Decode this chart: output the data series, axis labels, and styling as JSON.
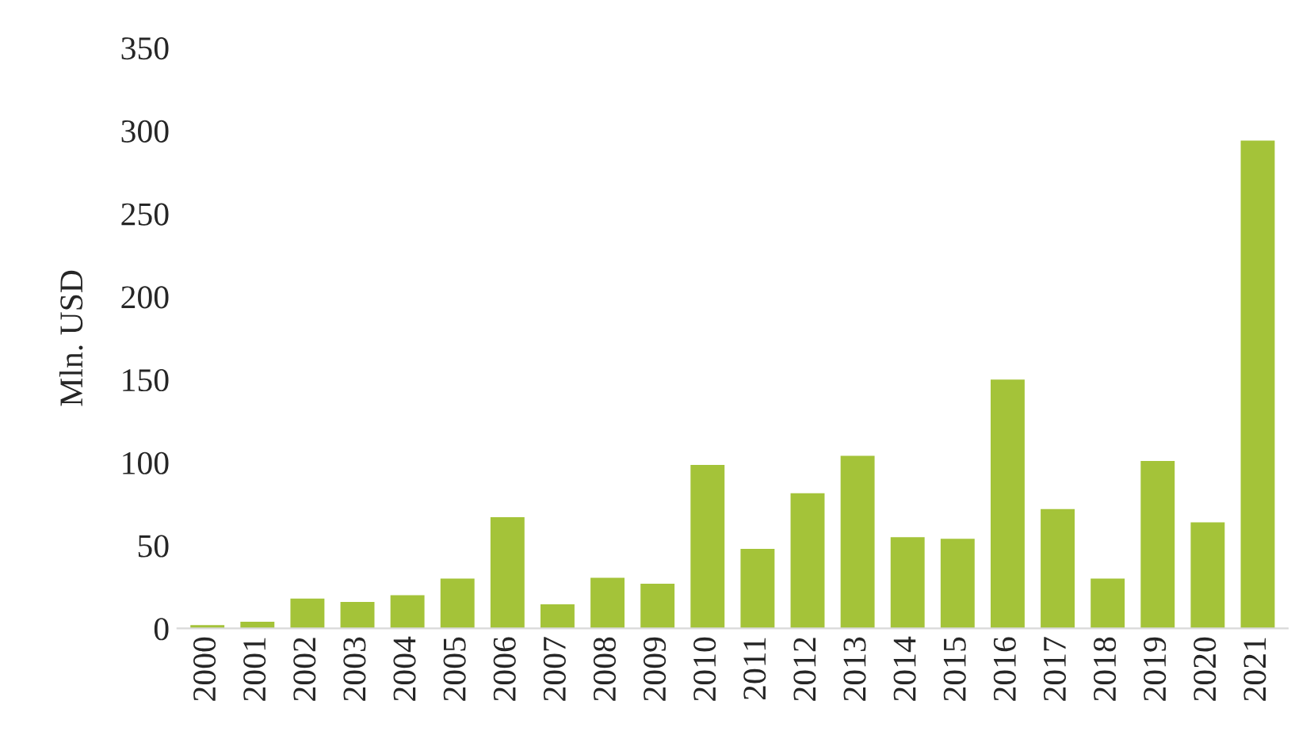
{
  "chart_data": {
    "type": "bar",
    "ylabel": "Mln. USD",
    "categories": [
      "2000",
      "2001",
      "2002",
      "2003",
      "2004",
      "2005",
      "2006",
      "2007",
      "2008",
      "2009",
      "2010",
      "2011",
      "2012",
      "2013",
      "2014",
      "2015",
      "2016",
      "2017",
      "2018",
      "2019",
      "2020",
      "2021"
    ],
    "values": [
      2,
      4,
      18,
      16,
      20,
      30,
      67,
      14.5,
      30.5,
      27,
      98.5,
      48,
      81.5,
      104,
      55,
      54,
      150,
      72,
      30,
      101,
      64,
      294
    ],
    "color": "#a4c339",
    "ylim": [
      0,
      350
    ],
    "yticks": [
      0,
      50,
      100,
      150,
      200,
      250,
      300,
      350
    ],
    "grid": false,
    "legend": false
  }
}
